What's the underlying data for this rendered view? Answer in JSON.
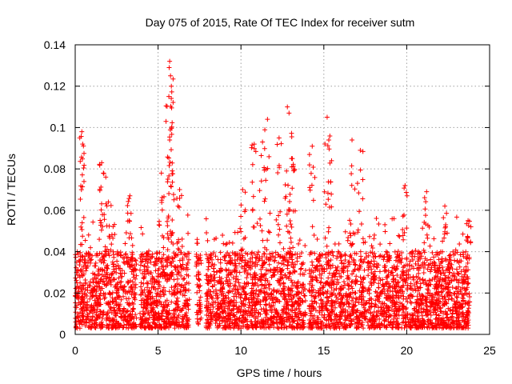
{
  "chart_data": {
    "type": "scatter",
    "title": "Day 075 of 2015, Rate Of TEC Index for receiver sutm",
    "xlabel": "GPS time / hours",
    "ylabel": "ROTI / TECUs",
    "xlim": [
      0,
      25
    ],
    "ylim": [
      0,
      0.14
    ],
    "x_ticks": [
      0,
      5,
      10,
      15,
      20,
      25
    ],
    "x_tick_labels": [
      "0",
      "5",
      "10",
      "15",
      "20",
      "25"
    ],
    "y_ticks": [
      0,
      0.02,
      0.04,
      0.06,
      0.08,
      0.1,
      0.12,
      0.14
    ],
    "y_tick_labels": [
      "0",
      "0.02",
      "0.04",
      "0.06",
      "0.08",
      "0.1",
      "0.12",
      "0.14"
    ],
    "grid": true,
    "marker": "+",
    "series": [
      {
        "name": "ROTI",
        "color": "#ff0000",
        "coverage_hours": [
          [
            0.0,
            3.7
          ],
          [
            3.9,
            6.9
          ],
          [
            7.3,
            7.6
          ],
          [
            7.9,
            13.9
          ],
          [
            14.1,
            23.8
          ]
        ],
        "base_range": [
          0.003,
          0.04
        ],
        "peaks": [
          {
            "x": 0.4,
            "y": 0.098
          },
          {
            "x": 0.45,
            "y": 0.092
          },
          {
            "x": 1.6,
            "y": 0.083
          },
          {
            "x": 1.7,
            "y": 0.078
          },
          {
            "x": 2.0,
            "y": 0.064
          },
          {
            "x": 3.3,
            "y": 0.067
          },
          {
            "x": 5.2,
            "y": 0.078
          },
          {
            "x": 5.7,
            "y": 0.132
          },
          {
            "x": 5.75,
            "y": 0.125
          },
          {
            "x": 5.8,
            "y": 0.12
          },
          {
            "x": 5.65,
            "y": 0.115
          },
          {
            "x": 5.7,
            "y": 0.094
          },
          {
            "x": 6.3,
            "y": 0.07
          },
          {
            "x": 10.1,
            "y": 0.07
          },
          {
            "x": 10.8,
            "y": 0.092
          },
          {
            "x": 11.3,
            "y": 0.093
          },
          {
            "x": 11.6,
            "y": 0.104
          },
          {
            "x": 12.3,
            "y": 0.095
          },
          {
            "x": 12.8,
            "y": 0.11
          },
          {
            "x": 12.9,
            "y": 0.107
          },
          {
            "x": 13.1,
            "y": 0.085
          },
          {
            "x": 14.3,
            "y": 0.091
          },
          {
            "x": 15.2,
            "y": 0.105
          },
          {
            "x": 15.3,
            "y": 0.094
          },
          {
            "x": 16.7,
            "y": 0.094
          },
          {
            "x": 17.2,
            "y": 0.089
          },
          {
            "x": 19.9,
            "y": 0.072
          },
          {
            "x": 21.2,
            "y": 0.069
          },
          {
            "x": 22.3,
            "y": 0.062
          },
          {
            "x": 23.7,
            "y": 0.055
          }
        ]
      }
    ]
  }
}
